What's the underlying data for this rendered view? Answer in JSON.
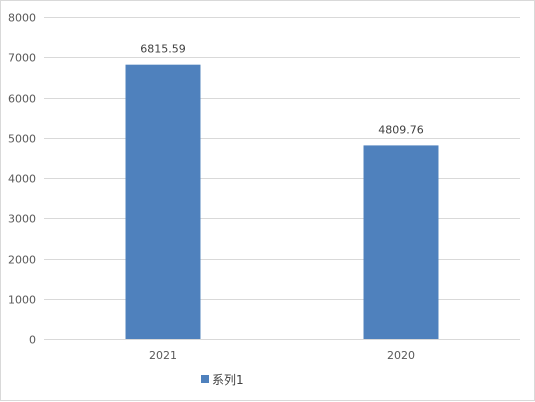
{
  "chart_data": {
    "type": "bar",
    "categories": [
      "2021",
      "2020"
    ],
    "series": [
      {
        "name": "系列1",
        "values": [
          6815.59,
          4809.76
        ],
        "labels": [
          "6815.59",
          "4809.76"
        ],
        "color": "#4f81bd"
      }
    ],
    "ylim": [
      0,
      8000
    ],
    "yticks": [
      0,
      1000,
      2000,
      3000,
      4000,
      5000,
      6000,
      7000,
      8000
    ],
    "grid": true,
    "gridColor": "#d9d9d9",
    "legend_position": "bottom"
  }
}
